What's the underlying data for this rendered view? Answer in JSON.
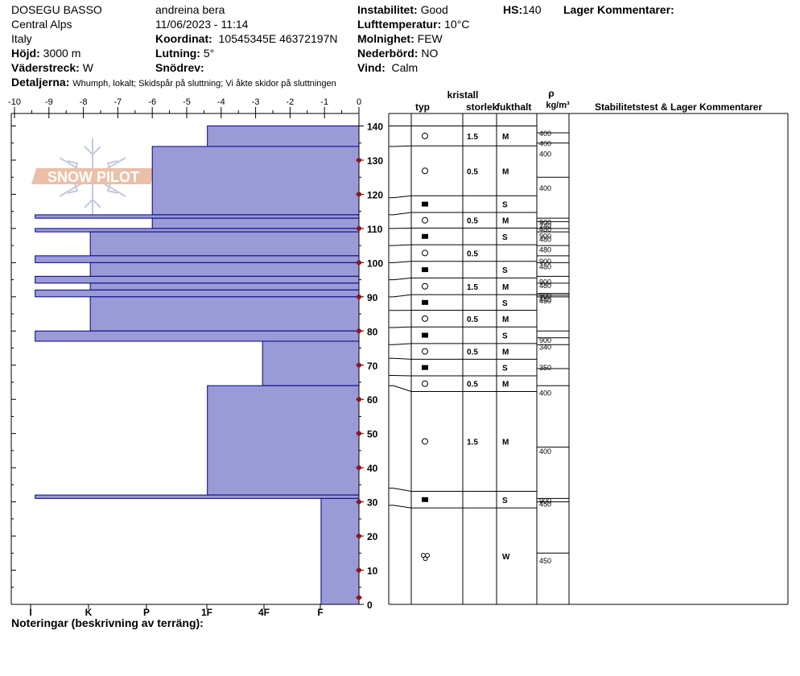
{
  "header": {
    "site": "DOSEGU BASSO",
    "range": "Central Alps",
    "country": "Italy",
    "elevation_label": "Höjd:",
    "elevation": "3000 m",
    "aspect_label": "Väderstreck:",
    "aspect": "W",
    "observer": "andreina bera",
    "datetime": "11/06/2023 - 11:14",
    "coord_label": "Koordinat:",
    "coord": "10545345E 46372197N",
    "slope_label": "Lutning:",
    "slope": "5°",
    "drift_label": "Snödrev:",
    "drift": "",
    "instability_label": "Instabilitet:",
    "instability": "Good",
    "airtemp_label": "Lufttemperatur:",
    "airtemp": "10°C",
    "sky_label": "Molnighet:",
    "sky": "FEW",
    "precip_label": "Nederbörd:",
    "precip": "NO",
    "wind_label": "Vind:",
    "wind": "Calm",
    "hs_label": "HS:",
    "hs": "140",
    "layer_comments_label": "Lager Kommentarer:",
    "details_label": "Detaljerna:",
    "details": "Whumph, lokalt;  Skidspår på sluttning;  Vi åkte skidor på sluttningen",
    "notes_label": "Noteringar (beskrivning av terräng):"
  },
  "table_headers": {
    "crystal": "kristall",
    "type": "typ",
    "size": "storlek",
    "moisture": "fukthalt",
    "rho": "ρ",
    "density_unit": "kg/m³",
    "stability": "Stabilitetstest & Lager Kommentarer"
  },
  "logo_text": "SNOW PILOT",
  "colors": {
    "hardness_fill": "#9a9ad6",
    "hardness_stroke": "#00008b",
    "temp_marker": "#8b1a1a"
  },
  "chart_data": {
    "type": "bar",
    "x_temp_ticks": [
      -10,
      -9,
      -8,
      -7,
      -6,
      -5,
      -4,
      -3,
      -2,
      -1,
      0
    ],
    "hardness_labels": [
      "I",
      "K",
      "P",
      "1F",
      "4F",
      "F"
    ],
    "y_ticks": [
      0,
      10,
      20,
      30,
      40,
      50,
      60,
      70,
      80,
      90,
      100,
      110,
      120,
      130,
      140
    ],
    "ylim": [
      0,
      140
    ],
    "hardness_layers": [
      {
        "top": 140,
        "bottom": 134,
        "temp_extent": -4.4
      },
      {
        "top": 134,
        "bottom": 114,
        "temp_extent": -6.0
      },
      {
        "top": 114,
        "bottom": 113,
        "temp_extent": -9.4
      },
      {
        "top": 113,
        "bottom": 110,
        "temp_extent": -6.0
      },
      {
        "top": 110,
        "bottom": 109,
        "temp_extent": -9.4
      },
      {
        "top": 109,
        "bottom": 102,
        "temp_extent": -7.8
      },
      {
        "top": 102,
        "bottom": 100,
        "temp_extent": -9.4
      },
      {
        "top": 100,
        "bottom": 96,
        "temp_extent": -7.8
      },
      {
        "top": 96,
        "bottom": 94,
        "temp_extent": -9.4
      },
      {
        "top": 94,
        "bottom": 92,
        "temp_extent": -7.8
      },
      {
        "top": 92,
        "bottom": 90,
        "temp_extent": -9.4
      },
      {
        "top": 90,
        "bottom": 80,
        "temp_extent": -7.8
      },
      {
        "top": 80,
        "bottom": 77,
        "temp_extent": -9.4
      },
      {
        "top": 77,
        "bottom": 64,
        "temp_extent": -2.8
      },
      {
        "top": 64,
        "bottom": 32,
        "temp_extent": -4.4
      },
      {
        "top": 32,
        "bottom": 31,
        "temp_extent": -9.4
      },
      {
        "top": 31,
        "bottom": 0,
        "temp_extent": -1.1
      }
    ],
    "temperature_profile": [
      {
        "depth": 2,
        "temp": 0
      },
      {
        "depth": 10,
        "temp": 0
      },
      {
        "depth": 20,
        "temp": 0
      },
      {
        "depth": 30,
        "temp": 0
      },
      {
        "depth": 40,
        "temp": 0
      },
      {
        "depth": 50,
        "temp": 0
      },
      {
        "depth": 60,
        "temp": 0
      },
      {
        "depth": 70,
        "temp": 0
      },
      {
        "depth": 80,
        "temp": 0
      },
      {
        "depth": 90,
        "temp": 0
      },
      {
        "depth": 100,
        "temp": 0
      },
      {
        "depth": 110,
        "temp": 0
      },
      {
        "depth": 120,
        "temp": 0
      },
      {
        "depth": 130,
        "temp": 0
      }
    ],
    "layer_table": [
      {
        "top": 140,
        "bottom": 134,
        "type": "rounded",
        "size": "1.5",
        "moisture": "M"
      },
      {
        "top": 134,
        "bottom": 119,
        "type": "rounded",
        "size": "0.5",
        "moisture": "M"
      },
      {
        "top": 119,
        "bottom": 114,
        "type": "crust",
        "size": "",
        "moisture": "S"
      },
      {
        "top": 114,
        "bottom": 110,
        "type": "rounded",
        "size": "0.5",
        "moisture": "M"
      },
      {
        "top": 110,
        "bottom": 105,
        "type": "crust",
        "size": "",
        "moisture": "S"
      },
      {
        "top": 105,
        "bottom": 100,
        "type": "rounded",
        "size": "0.5",
        "moisture": ""
      },
      {
        "top": 100,
        "bottom": 95,
        "type": "crust",
        "size": "",
        "moisture": "S"
      },
      {
        "top": 95,
        "bottom": 90,
        "type": "rounded",
        "size": "1.5",
        "moisture": "M"
      },
      {
        "top": 90,
        "bottom": 86,
        "type": "crust",
        "size": "",
        "moisture": "S"
      },
      {
        "top": 86,
        "bottom": 81,
        "type": "rounded",
        "size": "0.5",
        "moisture": "M"
      },
      {
        "top": 81,
        "bottom": 76,
        "type": "crust",
        "size": "",
        "moisture": "S"
      },
      {
        "top": 76,
        "bottom": 72,
        "type": "rounded",
        "size": "0.5",
        "moisture": "M"
      },
      {
        "top": 72,
        "bottom": 67,
        "type": "crust",
        "size": "",
        "moisture": "S"
      },
      {
        "top": 67,
        "bottom": 64,
        "type": "rounded",
        "size": "0.5",
        "moisture": "M"
      },
      {
        "top": 64,
        "bottom": 34,
        "type": "rounded",
        "size": "1.5",
        "moisture": "M"
      },
      {
        "top": 34,
        "bottom": 29,
        "type": "crust",
        "size": "",
        "moisture": "S"
      },
      {
        "top": 29,
        "bottom": 0,
        "type": "melt",
        "size": "",
        "moisture": "W"
      }
    ],
    "density_labels": [
      {
        "depth": 138,
        "text": "400"
      },
      {
        "depth": 135,
        "text": "400"
      },
      {
        "depth": 132,
        "text": "400"
      },
      {
        "depth": 122,
        "text": "400"
      },
      {
        "depth": 112,
        "text": "900"
      },
      {
        "depth": 111,
        "text": "240"
      },
      {
        "depth": 110,
        "text": "480"
      },
      {
        "depth": 108,
        "text": "900"
      },
      {
        "depth": 107,
        "text": "480"
      },
      {
        "depth": 104,
        "text": "480"
      },
      {
        "depth": 100.5,
        "text": "900"
      },
      {
        "depth": 99,
        "text": "480"
      },
      {
        "depth": 94.5,
        "text": "900"
      },
      {
        "depth": 93.5,
        "text": "480"
      },
      {
        "depth": 90.5,
        "text": "900"
      },
      {
        "depth": 89.5,
        "text": "480"
      },
      {
        "depth": 89,
        "text": "450"
      },
      {
        "depth": 77.5,
        "text": "900"
      },
      {
        "depth": 75.5,
        "text": "340"
      },
      {
        "depth": 69.5,
        "text": "350"
      },
      {
        "depth": 62,
        "text": "400"
      },
      {
        "depth": 45,
        "text": "400"
      },
      {
        "depth": 30.5,
        "text": "900"
      },
      {
        "depth": 29.5,
        "text": "450"
      },
      {
        "depth": 13,
        "text": "450"
      }
    ],
    "density_lines": [
      138,
      135,
      125,
      113,
      112,
      110,
      109,
      105,
      102,
      100,
      96,
      94,
      91,
      90.5,
      90,
      80,
      78,
      76,
      69,
      64,
      46,
      31,
      30,
      15
    ]
  }
}
